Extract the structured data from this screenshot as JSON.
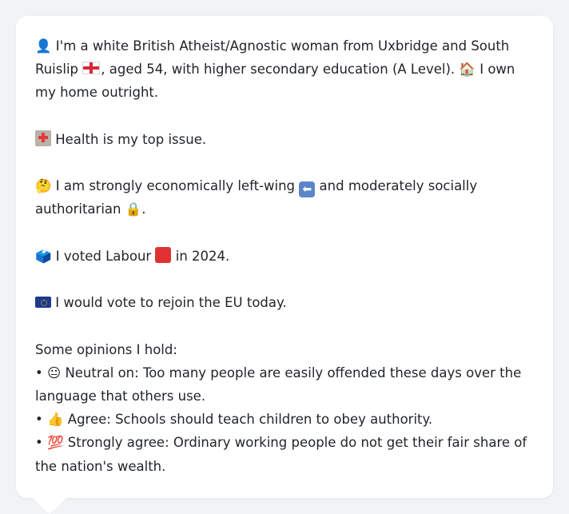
{
  "profile": {
    "line1": {
      "person_icon": "👤",
      "text_a": "I'm a white British Atheist/Agnostic woman from Uxbridge and South Ruislip",
      "text_b": ", aged 54, with higher secondary education (A Level).",
      "house_icon": "🏠",
      "text_c": "I own my home outright."
    },
    "health": {
      "text": "Health is my top issue."
    },
    "politics": {
      "thinking_icon": "🤔",
      "text_a": "I am strongly economically left-wing",
      "text_b": "and moderately socially authoritarian",
      "lock_icon": "🔒",
      "text_c": "."
    },
    "vote": {
      "ballot_icon": "🗳️",
      "text_a": "I voted Labour",
      "text_b": "in 2024."
    },
    "eu": {
      "text": "I would vote to rejoin the EU today."
    },
    "opinions": {
      "heading": "Some opinions I hold:",
      "items": [
        {
          "bullet": "•",
          "icon": "😐",
          "text": "Neutral on: Too many people are easily offended these days over the language that others use."
        },
        {
          "bullet": "•",
          "icon": "👍",
          "text": "Agree: Schools should teach children to obey authority."
        },
        {
          "bullet": "•",
          "icon": "💯",
          "text": "Strongly agree: Ordinary working people do not get their fair share of the nation's wealth."
        }
      ]
    }
  },
  "icons": {
    "england_flag": "england-flag-icon",
    "hospital": "hospital-icon",
    "left_arrow": "left-arrow-icon",
    "red_square": "red-square-icon",
    "eu_flag": "eu-flag-icon"
  },
  "colors": {
    "background": "#f1f3f5",
    "bubble": "#ffffff",
    "text": "#1f2328",
    "labour_red": "#e03232",
    "eu_blue": "#1e3a8a"
  }
}
